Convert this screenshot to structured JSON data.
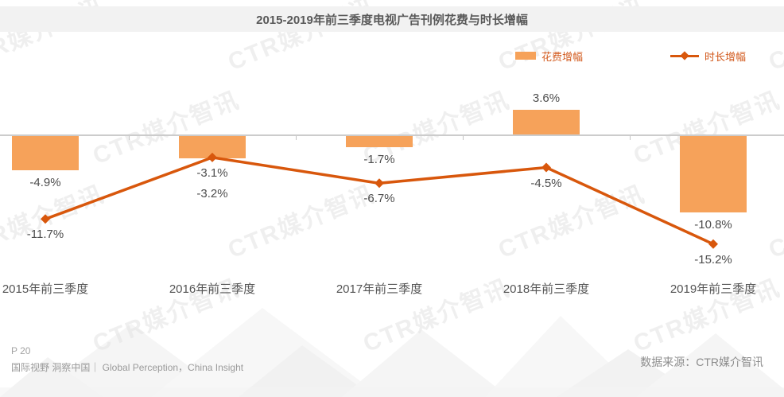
{
  "title": "2015-2019年前三季度电视广告刊例花费与时长增幅",
  "legend": [
    {
      "label": "花费增幅",
      "type": "bar"
    },
    {
      "label": "时长增幅",
      "type": "line"
    }
  ],
  "colors": {
    "bar": "#F6A25A",
    "line": "#D8570C",
    "legend_text": "#D2591C",
    "data_label": "#4D4D4D",
    "axis": "#CCCCCC",
    "title_text": "#595959",
    "title_band": "#F2F2F2"
  },
  "chart_data": {
    "type": "bar",
    "subtype": "bar+line combo",
    "title": "2015-2019年前三季度电视广告刊例花费与时长增幅",
    "categories": [
      "2015年前三季度",
      "2016年前三季度",
      "2017年前三季度",
      "2018年前三季度",
      "2019年前三季度"
    ],
    "series": [
      {
        "name": "花费增幅",
        "type": "bar",
        "unit": "%",
        "values": [
          -4.9,
          -3.2,
          -1.7,
          3.6,
          -10.8
        ]
      },
      {
        "name": "时长增幅",
        "type": "line",
        "unit": "%",
        "values": [
          -11.7,
          -3.1,
          -6.7,
          -4.5,
          -15.2
        ]
      }
    ],
    "data_labels": {
      "花费增幅": [
        "-4.9%",
        "-3.2%",
        "-1.7%",
        "3.6%",
        "-10.8%"
      ],
      "时长增幅": [
        "-11.7%",
        "-3.1%",
        "-6.7%",
        "-4.5%",
        "-15.2%"
      ]
    },
    "baseline": 0,
    "grid": false,
    "y_axis_visible": false,
    "legend_position": "top-right"
  },
  "watermark": "CTR媒介智讯",
  "footer": {
    "page": "P 20",
    "slogan": "国际视野 洞察中国｜ Global Perception，China Insight",
    "source": "数据来源：CTR媒介智讯"
  }
}
